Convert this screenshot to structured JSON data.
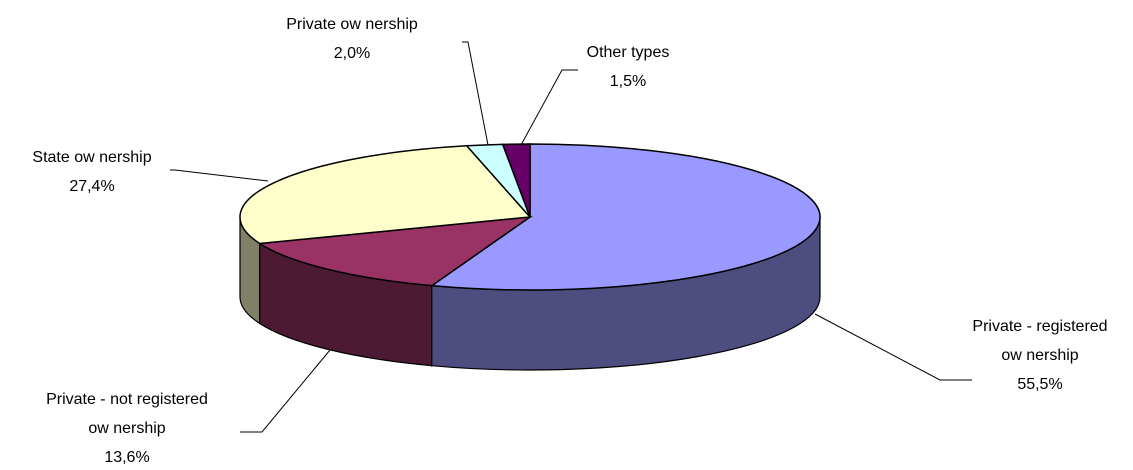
{
  "chart_data": {
    "type": "pie",
    "title": "",
    "style": "3d",
    "slices": [
      {
        "label_lines": [
          "Private - registered",
          "ow nership"
        ],
        "value_text": "55,5%",
        "value": 55.5,
        "color": "#9999ff",
        "side_color": "#4d4d80"
      },
      {
        "label_lines": [
          "Private - not registered",
          "ow nership"
        ],
        "value_text": "13,6%",
        "value": 13.6,
        "color": "#993366",
        "side_color": "#4d1a33"
      },
      {
        "label_lines": [
          "State ow nership"
        ],
        "value_text": "27,4%",
        "value": 27.4,
        "color": "#ffffcc",
        "side_color": "#808066"
      },
      {
        "label_lines": [
          "Private ow nership"
        ],
        "value_text": "2,0%",
        "value": 2.0,
        "color": "#ccffff",
        "side_color": "#668080"
      },
      {
        "label_lines": [
          "Other types"
        ],
        "value_text": "1,5%",
        "value": 1.5,
        "color": "#660066",
        "side_color": "#330033"
      }
    ]
  }
}
